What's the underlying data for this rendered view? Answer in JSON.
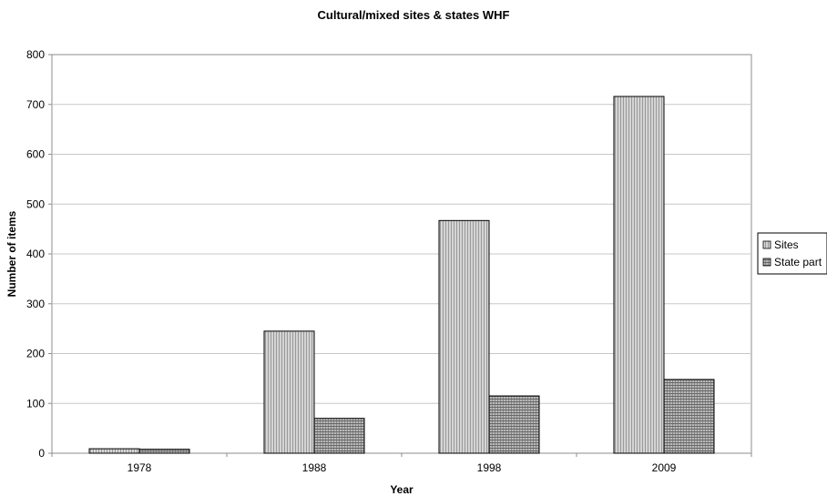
{
  "chart_data": {
    "type": "bar",
    "title": "Cultural/mixed sites & states WHF",
    "xlabel": "Year",
    "ylabel": "Number of items",
    "categories": [
      "1978",
      "1988",
      "1998",
      "2009"
    ],
    "series": [
      {
        "name": "Sites",
        "values": [
          9,
          245,
          467,
          716
        ],
        "color": "#cfcfcf"
      },
      {
        "name": "State part",
        "values": [
          8,
          70,
          115,
          148
        ],
        "color": "#a9a9a9"
      }
    ],
    "ylim": [
      0,
      800
    ],
    "yticks": [
      "0",
      "100",
      "200",
      "300",
      "400",
      "500",
      "600",
      "700",
      "800"
    ],
    "grid": true,
    "legend": "right"
  }
}
